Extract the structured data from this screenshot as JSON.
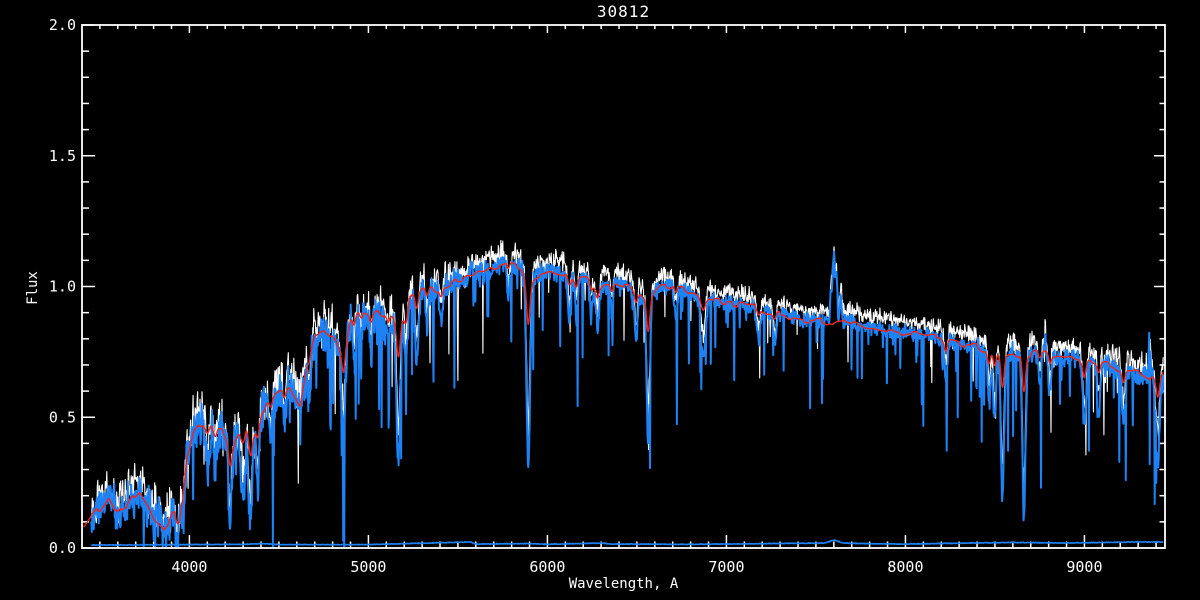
{
  "window": {
    "background": "#000000"
  },
  "chart_data": {
    "type": "line",
    "title": "30812",
    "xlabel": "Wavelength, A",
    "ylabel": "Flux",
    "xlim": [
      3400,
      9450
    ],
    "ylim": [
      0.0,
      2.0
    ],
    "grid": false,
    "legend": "none",
    "frame_color": "#ffffff",
    "background_color": "#000000",
    "x_major_ticks": [
      4000,
      5000,
      6000,
      7000,
      8000,
      9000
    ],
    "x_major_tick_labels": [
      "4000",
      "5000",
      "6000",
      "7000",
      "8000",
      "9000"
    ],
    "x_minor_step": 100,
    "y_major_ticks": [
      0.0,
      0.5,
      1.0,
      1.5,
      2.0
    ],
    "y_major_tick_labels": [
      "0.0",
      "0.5",
      "1.0",
      "1.5",
      "2.0"
    ],
    "y_minor_step": 0.1,
    "wl_start": 3452,
    "wl_end": 9440,
    "series": [
      {
        "name": "observed-raw",
        "color": "#ffffff",
        "style": "noisy, offset +0.04 above blue, drawn beneath"
      },
      {
        "name": "observed-spectrum",
        "color": "#1e82f5",
        "style": "noisy with deep narrow absorption dips"
      },
      {
        "name": "model-fit",
        "color": "#f02418",
        "style": "smooth curve tracking continuum"
      },
      {
        "name": "error-spectrum",
        "color": "#1e82f5",
        "style": "flat line just above zero"
      }
    ],
    "continuum_anchors": [
      [
        3410,
        0.08
      ],
      [
        3450,
        0.12
      ],
      [
        3500,
        0.15
      ],
      [
        3550,
        0.2
      ],
      [
        3600,
        0.13
      ],
      [
        3660,
        0.17
      ],
      [
        3720,
        0.22
      ],
      [
        3800,
        0.12
      ],
      [
        3860,
        0.08
      ],
      [
        3910,
        0.13
      ],
      [
        3945,
        0.12
      ],
      [
        3960,
        0.18
      ],
      [
        3985,
        0.34
      ],
      [
        4020,
        0.44
      ],
      [
        4075,
        0.48
      ],
      [
        4130,
        0.46
      ],
      [
        4180,
        0.45
      ],
      [
        4234,
        0.38
      ],
      [
        4280,
        0.45
      ],
      [
        4318,
        0.47
      ],
      [
        4346,
        0.4
      ],
      [
        4390,
        0.5
      ],
      [
        4440,
        0.55
      ],
      [
        4480,
        0.58
      ],
      [
        4520,
        0.6
      ],
      [
        4560,
        0.62
      ],
      [
        4617,
        0.55
      ],
      [
        4660,
        0.72
      ],
      [
        4700,
        0.8
      ],
      [
        4750,
        0.82
      ],
      [
        4800,
        0.8
      ],
      [
        4861,
        0.74
      ],
      [
        4900,
        0.87
      ],
      [
        4950,
        0.9
      ],
      [
        5000,
        0.89
      ],
      [
        5060,
        0.9
      ],
      [
        5120,
        0.89
      ],
      [
        5170,
        0.83
      ],
      [
        5230,
        0.95
      ],
      [
        5310,
        1.0
      ],
      [
        5380,
        0.98
      ],
      [
        5450,
        1.01
      ],
      [
        5520,
        1.03
      ],
      [
        5590,
        1.04
      ],
      [
        5660,
        1.06
      ],
      [
        5730,
        1.08
      ],
      [
        5790,
        1.09
      ],
      [
        5850,
        1.07
      ],
      [
        5893,
        1.02
      ],
      [
        5960,
        1.05
      ],
      [
        6040,
        1.06
      ],
      [
        6130,
        1.04
      ],
      [
        6230,
        1.03
      ],
      [
        6270,
        0.99
      ],
      [
        6340,
        1.02
      ],
      [
        6420,
        1.01
      ],
      [
        6510,
        0.97
      ],
      [
        6563,
        0.95
      ],
      [
        6640,
        1.0
      ],
      [
        6700,
        1.0
      ],
      [
        6780,
        0.98
      ],
      [
        6850,
        0.96
      ],
      [
        6920,
        0.95
      ],
      [
        7000,
        0.94
      ],
      [
        7080,
        0.93
      ],
      [
        7160,
        0.92
      ],
      [
        7240,
        0.9
      ],
      [
        7330,
        0.89
      ],
      [
        7430,
        0.87
      ],
      [
        7520,
        0.87
      ],
      [
        7600,
        0.86
      ],
      [
        7680,
        0.87
      ],
      [
        7760,
        0.85
      ],
      [
        7850,
        0.84
      ],
      [
        7940,
        0.83
      ],
      [
        8030,
        0.82
      ],
      [
        8120,
        0.81
      ],
      [
        8210,
        0.8
      ],
      [
        8300,
        0.78
      ],
      [
        8400,
        0.77
      ],
      [
        8470,
        0.75
      ],
      [
        8542,
        0.74
      ],
      [
        8600,
        0.75
      ],
      [
        8662,
        0.73
      ],
      [
        8730,
        0.75
      ],
      [
        8810,
        0.74
      ],
      [
        8890,
        0.73
      ],
      [
        8970,
        0.72
      ],
      [
        9050,
        0.71
      ],
      [
        9130,
        0.7
      ],
      [
        9210,
        0.68
      ],
      [
        9290,
        0.67
      ],
      [
        9360,
        0.65
      ],
      [
        9410,
        0.64
      ],
      [
        9440,
        0.67
      ]
    ],
    "absorption_lines": [
      [
        3933,
        0.1,
        8
      ],
      [
        3968,
        0.08,
        8
      ],
      [
        4101,
        0.18,
        10
      ],
      [
        4144,
        0.12,
        8
      ],
      [
        4227,
        0.3,
        9
      ],
      [
        4300,
        0.28,
        12
      ],
      [
        4340,
        0.3,
        10
      ],
      [
        4383,
        0.25,
        8
      ],
      [
        4455,
        0.15,
        8
      ],
      [
        4531,
        0.12,
        8
      ],
      [
        4668,
        0.15,
        9
      ],
      [
        4861,
        0.32,
        10
      ],
      [
        4920,
        0.15,
        8
      ],
      [
        4957,
        0.12,
        8
      ],
      [
        5015,
        0.14,
        8
      ],
      [
        5110,
        0.12,
        8
      ],
      [
        5167,
        0.5,
        10
      ],
      [
        5210,
        0.2,
        8
      ],
      [
        5270,
        0.28,
        9
      ],
      [
        5328,
        0.15,
        8
      ],
      [
        5406,
        0.12,
        8
      ],
      [
        5782,
        0.12,
        8
      ],
      [
        5893,
        0.72,
        10
      ],
      [
        6122,
        0.18,
        8
      ],
      [
        6162,
        0.15,
        8
      ],
      [
        6244,
        0.12,
        8
      ],
      [
        6280,
        0.15,
        8
      ],
      [
        6360,
        0.12,
        8
      ],
      [
        6495,
        0.18,
        8
      ],
      [
        6563,
        0.55,
        9
      ],
      [
        6717,
        0.12,
        8
      ],
      [
        6870,
        0.22,
        12
      ],
      [
        7180,
        0.12,
        10
      ],
      [
        7270,
        0.12,
        8
      ],
      [
        8226,
        0.15,
        8
      ],
      [
        8468,
        0.2,
        8
      ],
      [
        8498,
        0.25,
        8
      ],
      [
        8542,
        0.55,
        9
      ],
      [
        8662,
        0.62,
        9
      ],
      [
        8750,
        0.12,
        8
      ],
      [
        8806,
        0.15,
        8
      ],
      [
        9000,
        0.25,
        9
      ],
      [
        9080,
        0.18,
        8
      ],
      [
        9218,
        0.2,
        8
      ],
      [
        9410,
        0.32,
        10
      ]
    ],
    "emission_lines": [
      [
        7600,
        0.28,
        6
      ],
      [
        7615,
        0.18,
        5
      ],
      [
        7585,
        0.12,
        5
      ],
      [
        7640,
        0.1,
        5
      ],
      [
        5577,
        0.06,
        4
      ],
      [
        9365,
        0.15,
        5
      ],
      [
        8780,
        0.08,
        4
      ]
    ],
    "error_anchors": [
      [
        3452,
        0.01
      ],
      [
        4300,
        0.013
      ],
      [
        4400,
        0.016
      ],
      [
        4500,
        0.012
      ],
      [
        5000,
        0.012
      ],
      [
        5570,
        0.022
      ],
      [
        5600,
        0.014
      ],
      [
        5890,
        0.016
      ],
      [
        6000,
        0.013
      ],
      [
        6300,
        0.018
      ],
      [
        6360,
        0.014
      ],
      [
        6800,
        0.013
      ],
      [
        7550,
        0.018
      ],
      [
        7600,
        0.03
      ],
      [
        7650,
        0.018
      ],
      [
        7750,
        0.016
      ],
      [
        8000,
        0.014
      ],
      [
        8350,
        0.018
      ],
      [
        8600,
        0.02
      ],
      [
        8900,
        0.018
      ],
      [
        9100,
        0.02
      ],
      [
        9300,
        0.022
      ],
      [
        9440,
        0.022
      ]
    ],
    "render_params": {
      "samples": 2150,
      "seeds": [
        1234567,
        987654,
        55555,
        424242
      ],
      "noise_amp_anchors": [
        [
          3452,
          0.09
        ],
        [
          4000,
          0.1
        ],
        [
          4400,
          0.1
        ],
        [
          5000,
          0.08
        ],
        [
          5500,
          0.055
        ],
        [
          6000,
          0.045
        ],
        [
          6600,
          0.04
        ],
        [
          7200,
          0.035
        ],
        [
          8000,
          0.035
        ],
        [
          8800,
          0.042
        ],
        [
          9440,
          0.055
        ]
      ],
      "spike_depth_anchors": [
        [
          3452,
          0.25
        ],
        [
          4000,
          0.45
        ],
        [
          4500,
          0.5
        ],
        [
          5000,
          0.5
        ],
        [
          5600,
          0.55
        ],
        [
          6000,
          0.5
        ],
        [
          6500,
          0.45
        ],
        [
          7000,
          0.4
        ],
        [
          7600,
          0.35
        ],
        [
          8200,
          0.4
        ],
        [
          8800,
          0.45
        ],
        [
          9440,
          0.5
        ]
      ],
      "spike_probability": 0.1,
      "white_offset": 0.04,
      "white_line_factor": 0.8,
      "red_line_factor": 0.22,
      "red_wiggle": 0.012
    }
  }
}
